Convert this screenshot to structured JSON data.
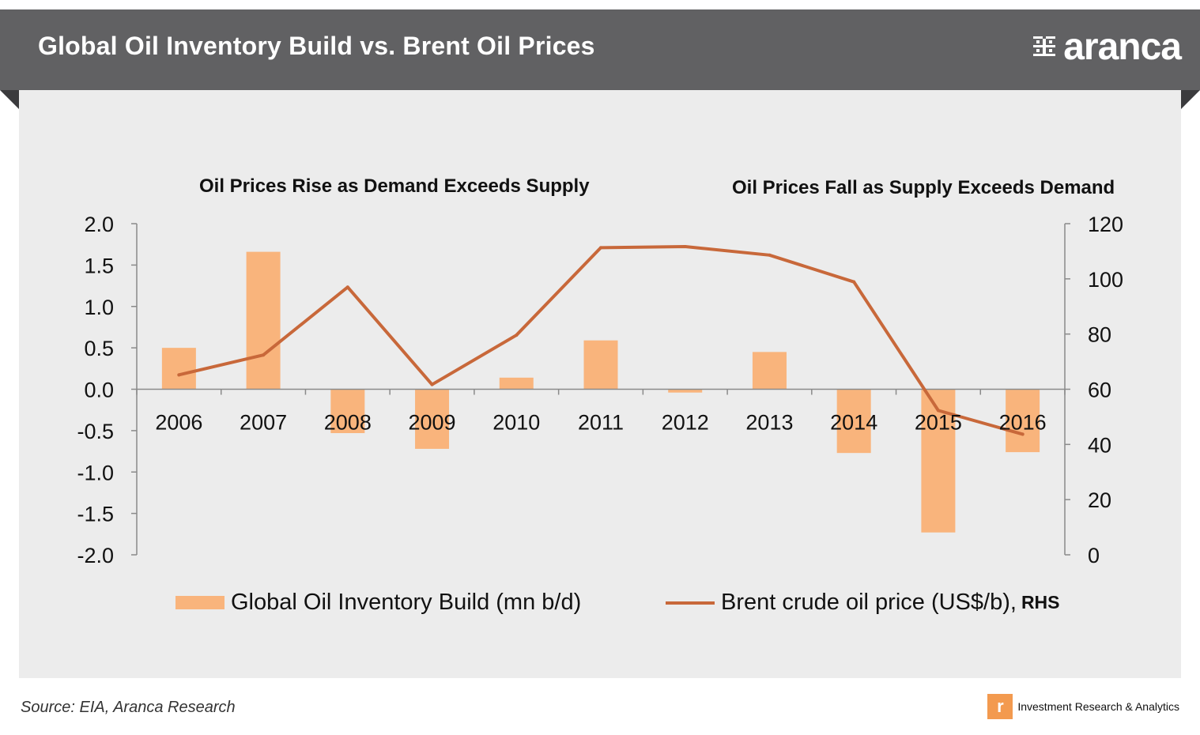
{
  "header": {
    "title": "Global Oil Inventory Build vs. Brent Oil Prices",
    "brand": "aranca"
  },
  "annotations": {
    "left": "Oil Prices Rise as Demand Exceeds Supply",
    "right": "Oil Prices Fall as Supply Exceeds Demand"
  },
  "legend": {
    "bar_label": "Global Oil Inventory Build (mn b/d)",
    "line_label": "Brent crude oil price (US$/b),",
    "line_suffix": "RHS"
  },
  "footer": {
    "source": "Source: EIA, Aranca Research",
    "tagline": "Investment  Research & Analytics"
  },
  "colors": {
    "bar": "#f9b47c",
    "line": "#c8683a",
    "banner": "#616163",
    "panel": "#ececec"
  },
  "chart_data": {
    "type": "bar",
    "categories": [
      "2006",
      "2007",
      "2008",
      "2009",
      "2010",
      "2011",
      "2012",
      "2013",
      "2014",
      "2015",
      "2016"
    ],
    "series": [
      {
        "name": "Global Oil Inventory Build (mn b/d)",
        "type": "bar",
        "axis": "left",
        "values": [
          0.5,
          1.66,
          -0.53,
          -0.72,
          0.14,
          0.59,
          -0.04,
          0.45,
          -0.77,
          -1.73,
          -0.76
        ]
      },
      {
        "name": "Brent crude oil price (US$/b), RHS",
        "type": "line",
        "axis": "right",
        "values": [
          65.2,
          72.4,
          97.0,
          61.7,
          79.6,
          111.3,
          111.7,
          108.6,
          98.9,
          52.3,
          43.7
        ]
      }
    ],
    "y_left": {
      "ylim": [
        -2.0,
        2.0
      ],
      "ticks": [
        2.0,
        1.5,
        1.0,
        0.5,
        0.0,
        -0.5,
        -1.0,
        -1.5,
        -2.0
      ],
      "tick_labels": [
        "2.0",
        "1.5",
        "1.0",
        "0.5",
        "0.0",
        "-0.5",
        "-1.0",
        "-1.5",
        "-2.0"
      ]
    },
    "y_right": {
      "ylim": [
        0,
        120
      ],
      "ticks": [
        120,
        100,
        80,
        60,
        40,
        20,
        0
      ],
      "tick_labels": [
        "120",
        "100",
        "80",
        "60",
        "40",
        "20",
        "0"
      ]
    },
    "grid": false,
    "legend_position": "bottom"
  }
}
